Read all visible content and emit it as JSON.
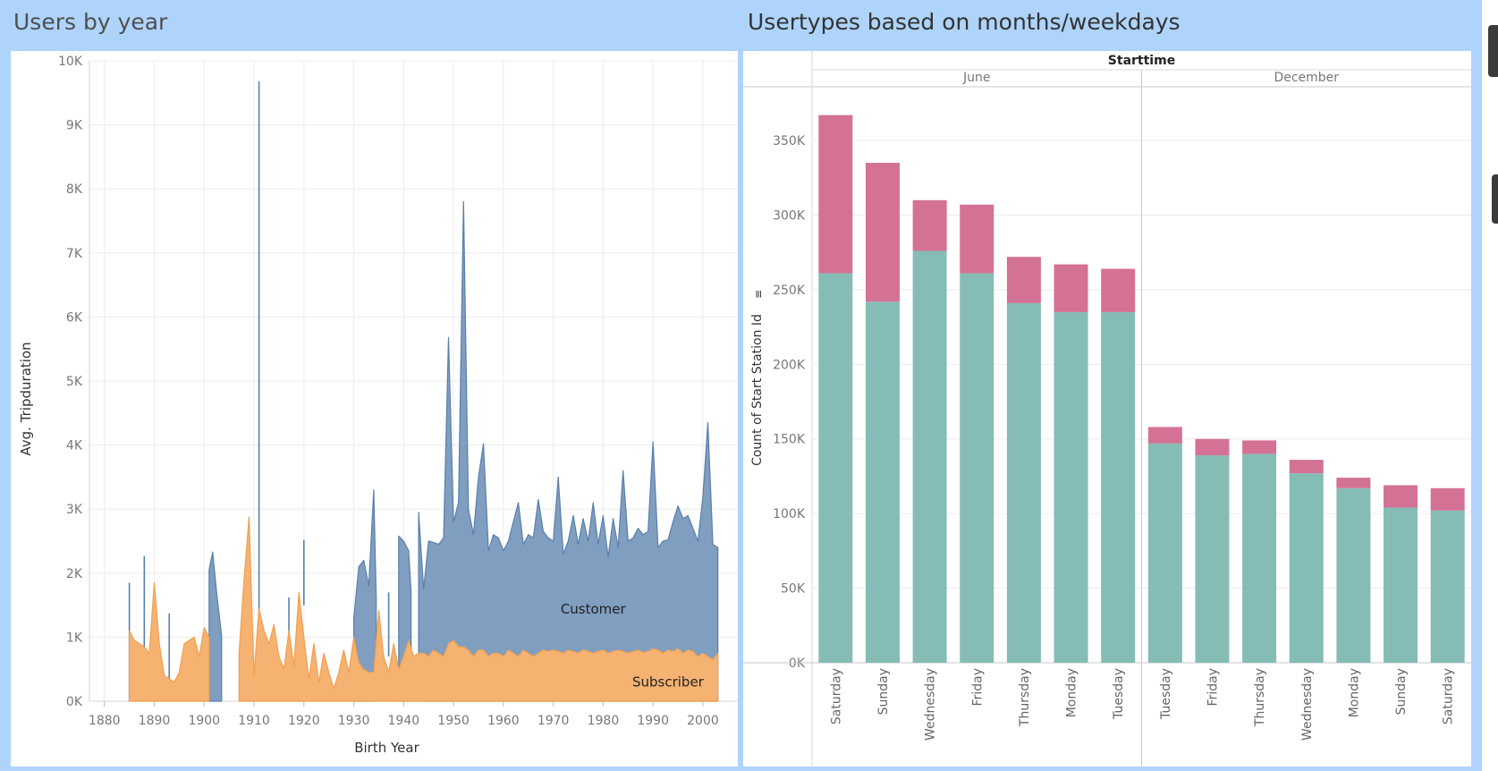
{
  "dashboard": {
    "left_title": "Users by year",
    "right_title": "Usertypes based on months/weekdays"
  },
  "colors": {
    "customer": "#7f9ec0",
    "customer_line": "#5a7fab",
    "subscriber": "#f5b271",
    "subscriber_line": "#f0a052",
    "teal": "#86bcb6",
    "pink": "#d37295",
    "grid": "#ececec",
    "background": "#aed4fb"
  },
  "chart_data": [
    {
      "type": "area",
      "xlabel": "Birth Year",
      "ylabel": "Avg. Tripduration",
      "xlim": [
        1877,
        2007
      ],
      "ylim": [
        0,
        10000
      ],
      "xticks": [
        1880,
        1890,
        1900,
        1910,
        1920,
        1930,
        1940,
        1950,
        1960,
        1970,
        1980,
        1990,
        2000
      ],
      "yticks": [
        "0K",
        "1K",
        "2K",
        "3K",
        "4K",
        "5K",
        "6K",
        "7K",
        "8K",
        "9K",
        "10K"
      ],
      "grid": true,
      "annotations": [
        "Customer",
        "Subscriber"
      ],
      "series": [
        {
          "name": "Customer",
          "segments": [
            {
              "x": [
                1885,
                1885
              ],
              "y": [
                1850,
                0
              ]
            },
            {
              "x": [
                1888,
                1888
              ],
              "y": [
                2270,
                0
              ]
            },
            {
              "x": [
                1893,
                1893
              ],
              "y": [
                1370,
                0
              ]
            },
            {
              "x": [
                1901,
                1901.7,
                1902.5,
                1903.5
              ],
              "y": [
                2050,
                2330,
                1700,
                1020
              ]
            },
            {
              "x": [
                1911,
                1911
              ],
              "y": [
                9680,
                1400
              ]
            },
            {
              "x": [
                1917,
                1917
              ],
              "y": [
                1620,
                800
              ]
            },
            {
              "x": [
                1920,
                1920
              ],
              "y": [
                2520,
                1500
              ]
            },
            {
              "x": [
                1930,
                1931,
                1932,
                1933,
                1934,
                1934.5
              ],
              "y": [
                1300,
                2100,
                2200,
                1800,
                3300,
                1600
              ]
            },
            {
              "x": [
                1937,
                1937
              ],
              "y": [
                1700,
                700
              ]
            },
            {
              "x": [
                1939,
                1940,
                1941,
                1941.5
              ],
              "y": [
                2580,
                2500,
                2350,
                1700
              ]
            },
            {
              "x": [
                1943,
                1944,
                1945,
                1946,
                1947,
                1948,
                1949,
                1950,
                1951,
                1952,
                1953,
                1954,
                1955,
                1956,
                1957,
                1958,
                1959,
                1960,
                1961,
                1962,
                1963,
                1964,
                1965,
                1966,
                1967,
                1968,
                1969,
                1970,
                1971,
                1972,
                1973,
                1974,
                1975,
                1976,
                1977,
                1978,
                1979,
                1980,
                1981,
                1982,
                1983,
                1984,
                1985,
                1986,
                1987,
                1988,
                1989,
                1990,
                1991,
                1992,
                1993,
                1994,
                1995,
                1996,
                1997,
                1998,
                1999,
                2000,
                2001,
                2002,
                2003
              ],
              "y": [
                2950,
                1750,
                2500,
                2480,
                2450,
                2550,
                5680,
                2800,
                3100,
                7800,
                3000,
                2600,
                3500,
                4020,
                2350,
                2600,
                2550,
                2350,
                2500,
                2800,
                3100,
                2450,
                2600,
                2550,
                3150,
                2650,
                2550,
                2500,
                3500,
                2300,
                2500,
                2900,
                2450,
                2850,
                2500,
                3100,
                2450,
                2900,
                2250,
                2850,
                2400,
                3600,
                2500,
                2550,
                2700,
                2600,
                2650,
                4050,
                2400,
                2500,
                2520,
                2800,
                3050,
                2850,
                2900,
                2700,
                2500,
                3200,
                4350,
                2450,
                2400
              ]
            }
          ]
        },
        {
          "name": "Subscriber",
          "segments": [
            {
              "x": [
                1885,
                1886,
                1887,
                1888,
                1889,
                1890,
                1891,
                1892,
                1893,
                1894,
                1895,
                1896,
                1897,
                1898,
                1899,
                1900,
                1901
              ],
              "y": [
                1100,
                950,
                900,
                850,
                750,
                1850,
                900,
                400,
                350,
                300,
                450,
                900,
                950,
                1000,
                700,
                1150,
                1000
              ]
            },
            {
              "x": [
                1907,
                1908,
                1909,
                1910,
                1911,
                1912,
                1913,
                1914,
                1915,
                1916,
                1917,
                1918,
                1919,
                1920,
                1921,
                1922,
                1923,
                1924,
                1925,
                1926,
                1927,
                1928,
                1929,
                1930,
                1931,
                1932,
                1933,
                1934,
                1935,
                1936,
                1937,
                1938,
                1939,
                1940,
                1941,
                1942,
                1943,
                1944,
                1945,
                1946,
                1947,
                1948,
                1949,
                1950,
                1951,
                1952,
                1953,
                1954,
                1955,
                1956,
                1957,
                1958,
                1959,
                1960,
                1961,
                1962,
                1963,
                1964,
                1965,
                1966,
                1967,
                1968,
                1969,
                1970,
                1971,
                1972,
                1973,
                1974,
                1975,
                1976,
                1977,
                1978,
                1979,
                1980,
                1981,
                1982,
                1983,
                1984,
                1985,
                1986,
                1987,
                1988,
                1989,
                1990,
                1991,
                1992,
                1993,
                1994,
                1995,
                1996,
                1997,
                1998,
                1999,
                2000,
                2001,
                2002,
                2003
              ],
              "y": [
                750,
                1900,
                2880,
                400,
                1450,
                1100,
                900,
                1200,
                700,
                500,
                1100,
                550,
                1700,
                1000,
                350,
                900,
                300,
                750,
                450,
                200,
                450,
                800,
                450,
                1000,
                600,
                500,
                450,
                450,
                1420,
                700,
                450,
                900,
                500,
                700,
                950,
                700,
                750,
                750,
                700,
                800,
                750,
                700,
                900,
                950,
                850,
                850,
                800,
                700,
                800,
                800,
                700,
                750,
                750,
                700,
                800,
                750,
                700,
                800,
                750,
                700,
                750,
                800,
                780,
                800,
                780,
                750,
                800,
                780,
                750,
                800,
                780,
                750,
                780,
                800,
                750,
                780,
                800,
                780,
                750,
                780,
                800,
                760,
                780,
                820,
                800,
                750,
                800,
                780,
                820,
                750,
                800,
                780,
                700,
                750,
                700,
                650,
                750
              ]
            }
          ]
        }
      ]
    },
    {
      "type": "bar",
      "stacked": true,
      "title": "Starttime",
      "ylabel": "Count of Start Station Id",
      "ylim": [
        0,
        380000
      ],
      "yticks": [
        "0K",
        "50K",
        "100K",
        "150K",
        "200K",
        "250K",
        "300K",
        "350K"
      ],
      "grid": true,
      "groups": [
        {
          "label": "June",
          "categories": [
            "Saturday",
            "Sunday",
            "Wednesday",
            "Friday",
            "Thursday",
            "Monday",
            "Tuesday"
          ],
          "bottom": [
            261000,
            242000,
            276000,
            261000,
            241000,
            235000,
            235000
          ],
          "top": [
            106000,
            93000,
            34000,
            46000,
            31000,
            32000,
            29000
          ]
        },
        {
          "label": "December",
          "categories": [
            "Tuesday",
            "Friday",
            "Thursday",
            "Wednesday",
            "Monday",
            "Sunday",
            "Saturday"
          ],
          "bottom": [
            147000,
            139000,
            140000,
            127000,
            117000,
            104000,
            102000
          ],
          "top": [
            11000,
            11000,
            9000,
            9000,
            7000,
            15000,
            15000
          ]
        }
      ]
    }
  ]
}
